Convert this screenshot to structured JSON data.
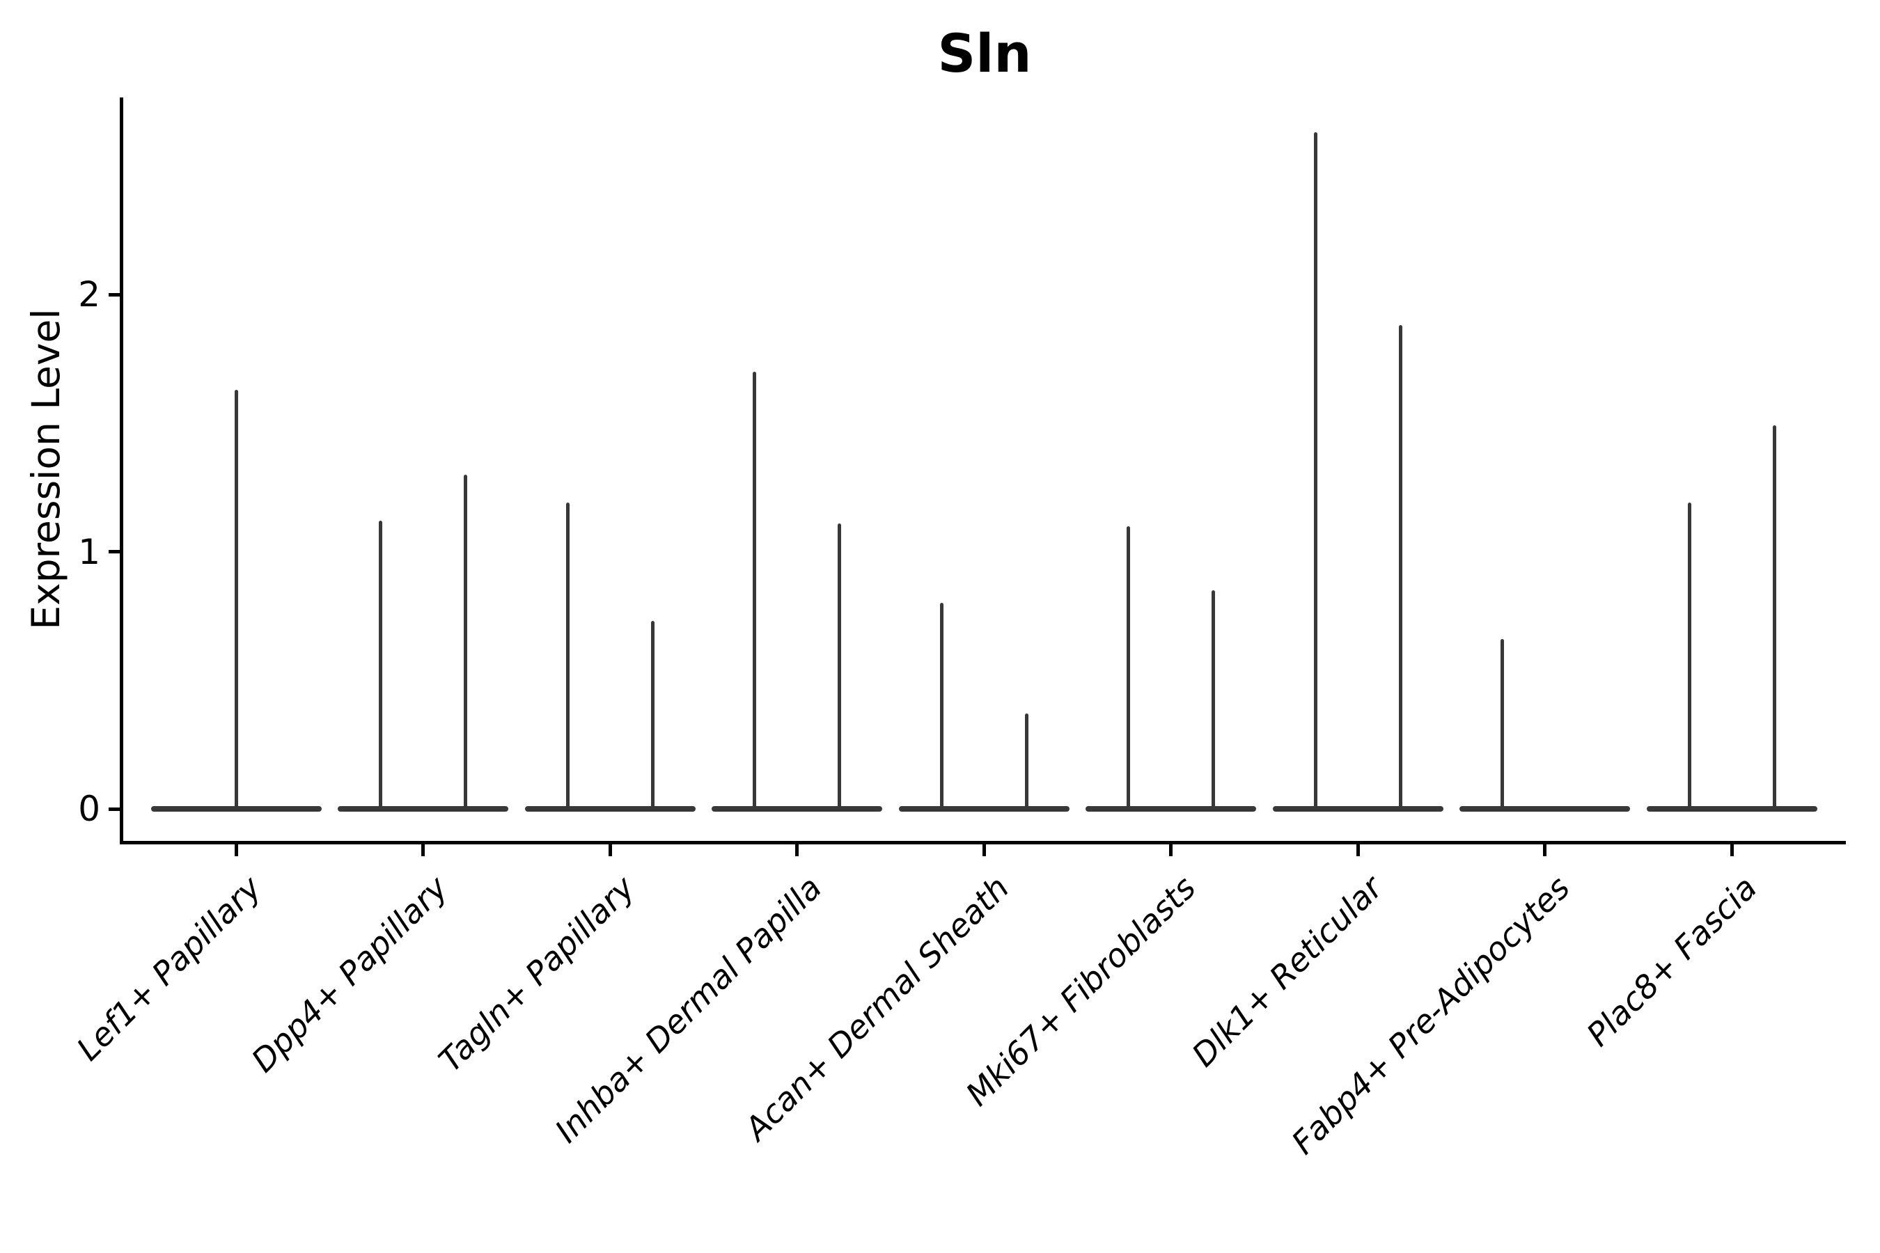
{
  "page": {
    "background": "#ffffff"
  },
  "header": {
    "title": "Sln"
  },
  "chart_data": {
    "type": "violin",
    "title": "Sln",
    "xlabel": "",
    "ylabel": "Expression Level",
    "ylim": [
      0,
      2.77
    ],
    "yticks": [
      "0",
      "1",
      "2"
    ],
    "grid": false,
    "legend_position": "none",
    "ink_color": "#383838",
    "axis_color": "#000000",
    "categories": [
      "Lef1+ Papillary",
      "Dpp4+ Papillary",
      "Tagln+ Papillary",
      "Inhba+ Dermal Papilla",
      "Acan+ Dermal Sheath",
      "Mki67+ Fibroblasts",
      "Dlk1+ Reticular",
      "Fabp4+ Pre-Adipocytes",
      "Plac8+ Fascia"
    ],
    "violins": [
      {
        "category": "Lef1+ Papillary",
        "baseline_value": 0,
        "spikes": [
          {
            "pos": "center",
            "peak": 1.63
          }
        ]
      },
      {
        "category": "Dpp4+ Papillary",
        "baseline_value": 0,
        "spikes": [
          {
            "pos": "left",
            "peak": 1.12
          },
          {
            "pos": "right",
            "peak": 1.3
          }
        ]
      },
      {
        "category": "Tagln+ Papillary",
        "baseline_value": 0,
        "spikes": [
          {
            "pos": "left",
            "peak": 1.19
          },
          {
            "pos": "right",
            "peak": 0.73
          }
        ]
      },
      {
        "category": "Inhba+ Dermal Papilla",
        "baseline_value": 0,
        "spikes": [
          {
            "pos": "left",
            "peak": 1.7
          },
          {
            "pos": "right",
            "peak": 1.11
          }
        ]
      },
      {
        "category": "Acan+ Dermal Sheath",
        "baseline_value": 0,
        "spikes": [
          {
            "pos": "left",
            "peak": 0.8
          },
          {
            "pos": "right",
            "peak": 0.37
          }
        ]
      },
      {
        "category": "Mki67+ Fibroblasts",
        "baseline_value": 0,
        "spikes": [
          {
            "pos": "left",
            "peak": 1.1
          },
          {
            "pos": "right",
            "peak": 0.85
          }
        ]
      },
      {
        "category": "Dlk1+ Reticular",
        "baseline_value": 0,
        "spikes": [
          {
            "pos": "left",
            "peak": 2.63
          },
          {
            "pos": "right",
            "peak": 1.88
          }
        ]
      },
      {
        "category": "Fabp4+ Pre-Adipocytes",
        "baseline_value": 0,
        "spikes": [
          {
            "pos": "left",
            "peak": 0.66
          }
        ]
      },
      {
        "category": "Plac8+ Fascia",
        "baseline_value": 0,
        "spikes": [
          {
            "pos": "left",
            "peak": 1.19
          },
          {
            "pos": "right",
            "peak": 1.49
          }
        ]
      }
    ]
  }
}
